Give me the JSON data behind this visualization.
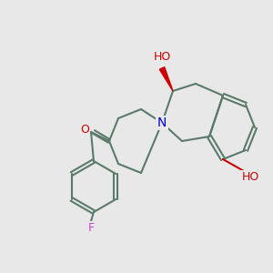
{
  "bg_color": "#e8e8e8",
  "bond_color": "#5a7a6a",
  "bond_width": 1.5,
  "atom_colors": {
    "O": "#cc0000",
    "N": "#0000cc",
    "F": "#cc44cc",
    "C": "#000000"
  },
  "font_size": 9,
  "title": ""
}
